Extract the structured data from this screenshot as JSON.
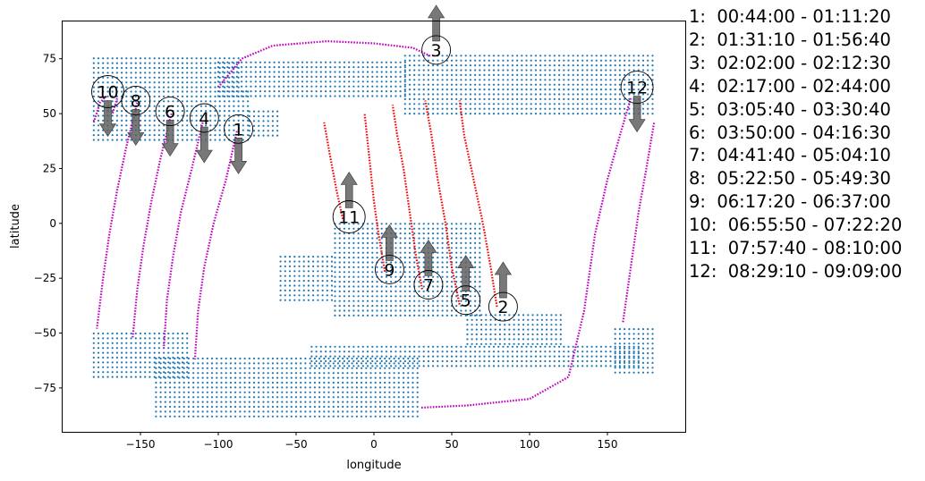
{
  "chart_data": {
    "type": "scatter",
    "xlabel": "longitude",
    "ylabel": "latitude",
    "xlim": [
      -200,
      200
    ],
    "ylim": [
      -95,
      92
    ],
    "xticks": [
      -150,
      -100,
      -50,
      0,
      50,
      100,
      150
    ],
    "yticks": [
      75,
      50,
      25,
      0,
      -25,
      -50,
      -75
    ],
    "colors": {
      "coverage": "#1f77b4",
      "ascending": "#ff0000",
      "descending": "#bf00bf",
      "arrow": "#606060"
    },
    "coverage_regions": [
      {
        "lat_min": 62,
        "lat_max": 77,
        "lon_min": -180,
        "lon_max": -85
      },
      {
        "lat_min": 38,
        "lat_max": 62,
        "lon_min": -180,
        "lon_max": -80
      },
      {
        "lat_min": 58,
        "lat_max": 75,
        "lon_min": -100,
        "lon_max": 20
      },
      {
        "lat_min": 50,
        "lat_max": 78,
        "lon_min": 20,
        "lon_max": 180
      },
      {
        "lat_min": 40,
        "lat_max": 52,
        "lon_min": -80,
        "lon_max": -60
      },
      {
        "lat_min": -42,
        "lat_max": 2,
        "lon_min": -25,
        "lon_max": 70
      },
      {
        "lat_min": -35,
        "lat_max": -15,
        "lon_min": -60,
        "lon_max": -25
      },
      {
        "lat_min": -55,
        "lat_max": -40,
        "lon_min": 60,
        "lon_max": 120
      },
      {
        "lat_min": -88,
        "lat_max": -60,
        "lon_min": -140,
        "lon_max": 30
      },
      {
        "lat_min": -65,
        "lat_max": -55,
        "lon_min": -40,
        "lon_max": 170
      },
      {
        "lat_min": -70,
        "lat_max": -48,
        "lon_min": -180,
        "lon_max": -120
      },
      {
        "lat_min": -68,
        "lat_max": -48,
        "lon_min": 155,
        "lon_max": 180
      }
    ],
    "tracks": [
      {
        "id": "1",
        "time": "00:44:00 - 01:11:20",
        "dir": "descending",
        "points": [
          [
            -88,
            42
          ],
          [
            -95,
            20
          ],
          [
            -103,
            0
          ],
          [
            -109,
            -20
          ],
          [
            -113,
            -40
          ],
          [
            -115,
            -62
          ]
        ]
      },
      {
        "id": "2",
        "time": "01:31:10 - 01:56:40",
        "dir": "ascending",
        "points": [
          [
            79,
            -38
          ],
          [
            75,
            -20
          ],
          [
            70,
            0
          ],
          [
            64,
            20
          ],
          [
            58,
            40
          ],
          [
            55,
            56
          ]
        ]
      },
      {
        "id": "3",
        "time": "02:02:00 - 02:12:30",
        "dir": "descending",
        "points": [
          [
            -100,
            62
          ],
          [
            -85,
            75
          ],
          [
            -65,
            81
          ],
          [
            -30,
            83
          ],
          [
            0,
            82
          ],
          [
            25,
            80
          ],
          [
            37,
            76
          ]
        ]
      },
      {
        "id": "4",
        "time": "02:17:00 - 02:44:00",
        "dir": "descending",
        "points": [
          [
            -110,
            46
          ],
          [
            -117,
            25
          ],
          [
            -124,
            5
          ],
          [
            -129,
            -15
          ],
          [
            -133,
            -35
          ],
          [
            -135,
            -57
          ]
        ]
      },
      {
        "id": "5",
        "time": "03:05:40 - 03:30:40",
        "dir": "ascending",
        "points": [
          [
            55,
            -37
          ],
          [
            50,
            -20
          ],
          [
            46,
            0
          ],
          [
            41,
            20
          ],
          [
            37,
            40
          ],
          [
            33,
            56
          ]
        ]
      },
      {
        "id": "6",
        "time": "03:50:00 - 04:16:30",
        "dir": "descending",
        "points": [
          [
            -130,
            50
          ],
          [
            -137,
            30
          ],
          [
            -143,
            10
          ],
          [
            -148,
            -10
          ],
          [
            -152,
            -30
          ],
          [
            -155,
            -52
          ]
        ]
      },
      {
        "id": "7",
        "time": "04:41:40 - 05:04:10",
        "dir": "ascending",
        "points": [
          [
            31,
            -30
          ],
          [
            27,
            -15
          ],
          [
            23,
            5
          ],
          [
            19,
            25
          ],
          [
            15,
            40
          ],
          [
            12,
            54
          ]
        ]
      },
      {
        "id": "8",
        "time": "05:22:50 - 05:49:30",
        "dir": "descending",
        "points": [
          [
            -152,
            55
          ],
          [
            -159,
            35
          ],
          [
            -165,
            15
          ],
          [
            -170,
            -5
          ],
          [
            -174,
            -25
          ],
          [
            -178,
            -48
          ]
        ]
      },
      {
        "id": "9",
        "time": "06:17:20 - 06:37:00",
        "dir": "ascending",
        "points": [
          [
            7,
            -22
          ],
          [
            3,
            -5
          ],
          [
            0,
            10
          ],
          [
            -3,
            30
          ],
          [
            -6,
            50
          ]
        ]
      },
      {
        "id": "10",
        "time": "06:55:50 - 07:22:20",
        "dir": "descending",
        "points": [
          [
            -165,
            57
          ],
          [
            -168,
            50
          ]
        ]
      },
      {
        "id": "11",
        "time": "07:57:40 - 08:10:00",
        "dir": "ascending",
        "points": [
          [
            -20,
            2
          ],
          [
            -24,
            15
          ],
          [
            -28,
            30
          ],
          [
            -32,
            46
          ]
        ]
      },
      {
        "id": "12",
        "time": "08:29:10 - 09:09:00",
        "dir": "descending",
        "points": [
          [
            165,
            57
          ],
          [
            158,
            40
          ],
          [
            150,
            20
          ],
          [
            142,
            -5
          ],
          [
            135,
            -40
          ],
          [
            125,
            -70
          ],
          [
            100,
            -80
          ],
          [
            60,
            -83
          ],
          [
            30,
            -84
          ]
        ]
      },
      {
        "id": "12b",
        "time": "",
        "dir": "descending",
        "points": [
          [
            160,
            -45
          ],
          [
            165,
            -20
          ],
          [
            170,
            5
          ],
          [
            175,
            25
          ],
          [
            180,
            46
          ]
        ]
      },
      {
        "id": "10b",
        "time": "",
        "dir": "descending",
        "points": [
          [
            -180,
            46
          ],
          [
            -176,
            55
          ],
          [
            -172,
            58
          ]
        ]
      }
    ],
    "markers": [
      {
        "label": "1",
        "lon": -87,
        "lat": 43,
        "arrow": "down"
      },
      {
        "label": "2",
        "lon": 83,
        "lat": -38,
        "arrow": "up"
      },
      {
        "label": "3",
        "lon": 40,
        "lat": 79,
        "arrow": "up"
      },
      {
        "label": "4",
        "lon": -109,
        "lat": 48,
        "arrow": "down"
      },
      {
        "label": "5",
        "lon": 59,
        "lat": -35,
        "arrow": "up"
      },
      {
        "label": "6",
        "lon": -131,
        "lat": 51,
        "arrow": "down"
      },
      {
        "label": "7",
        "lon": 35,
        "lat": -28,
        "arrow": "up"
      },
      {
        "label": "8",
        "lon": -153,
        "lat": 56,
        "arrow": "down"
      },
      {
        "label": "9",
        "lon": 10,
        "lat": -21,
        "arrow": "up"
      },
      {
        "label": "10",
        "lon": -171,
        "lat": 60,
        "arrow": "down"
      },
      {
        "label": "11",
        "lon": -16,
        "lat": 3,
        "arrow": "up"
      },
      {
        "label": "12",
        "lon": 169,
        "lat": 62,
        "arrow": "down"
      }
    ],
    "legend_entries": [
      "1:  00:44:00 - 01:11:20",
      "2:  01:31:10 - 01:56:40",
      "3:  02:02:00 - 02:12:30",
      "4:  02:17:00 - 02:44:00",
      "5:  03:05:40 - 03:30:40",
      "6:  03:50:00 - 04:16:30",
      "7:  04:41:40 - 05:04:10",
      "8:  05:22:50 - 05:49:30",
      "9:  06:17:20 - 06:37:00",
      "10:  06:55:50 - 07:22:20",
      "11:  07:57:40 - 08:10:00",
      "12:  08:29:10 - 09:09:00"
    ],
    "legend_placement": "right"
  }
}
